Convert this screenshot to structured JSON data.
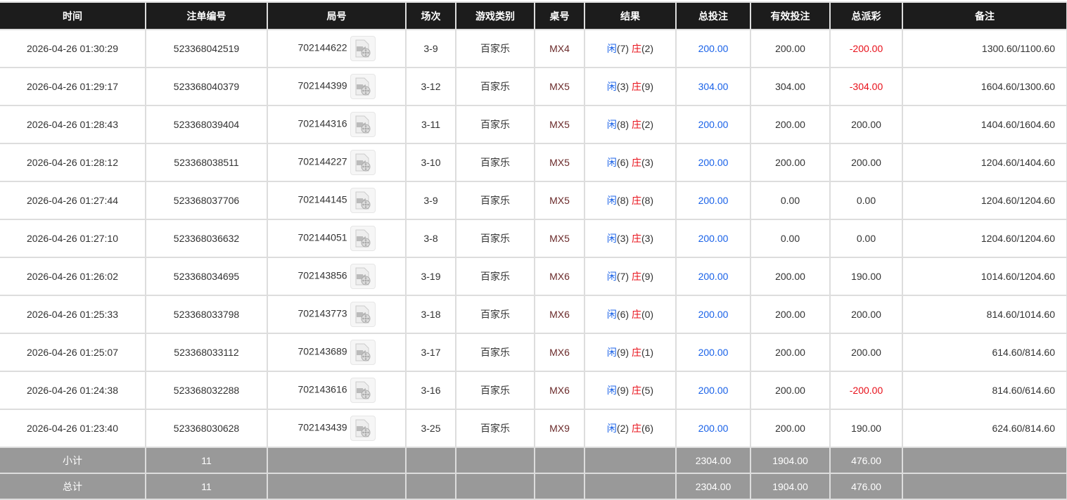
{
  "headers": [
    "时间",
    "注单编号",
    "局号",
    "场次",
    "游戏类别",
    "桌号",
    "结果",
    "总投注",
    "有效投注",
    "总派彩",
    "备注"
  ],
  "rows": [
    {
      "time": "2026-04-26 01:30:29",
      "bet_id": "523368042519",
      "round": "702144622",
      "session": "3-9",
      "game": "百家乐",
      "table": "MX4",
      "player": "闲",
      "player_pts": "(7)",
      "banker": "庄",
      "banker_pts": "(2)",
      "total_bet": "200.00",
      "valid_bet": "200.00",
      "payout": "-200.00",
      "remark": "1300.60/1100.60"
    },
    {
      "time": "2026-04-26 01:29:17",
      "bet_id": "523368040379",
      "round": "702144399",
      "session": "3-12",
      "game": "百家乐",
      "table": "MX5",
      "player": "闲",
      "player_pts": "(3)",
      "banker": "庄",
      "banker_pts": "(9)",
      "total_bet": "304.00",
      "valid_bet": "304.00",
      "payout": "-304.00",
      "remark": "1604.60/1300.60"
    },
    {
      "time": "2026-04-26 01:28:43",
      "bet_id": "523368039404",
      "round": "702144316",
      "session": "3-11",
      "game": "百家乐",
      "table": "MX5",
      "player": "闲",
      "player_pts": "(8)",
      "banker": "庄",
      "banker_pts": "(2)",
      "total_bet": "200.00",
      "valid_bet": "200.00",
      "payout": "200.00",
      "remark": "1404.60/1604.60"
    },
    {
      "time": "2026-04-26 01:28:12",
      "bet_id": "523368038511",
      "round": "702144227",
      "session": "3-10",
      "game": "百家乐",
      "table": "MX5",
      "player": "闲",
      "player_pts": "(6)",
      "banker": "庄",
      "banker_pts": "(3)",
      "total_bet": "200.00",
      "valid_bet": "200.00",
      "payout": "200.00",
      "remark": "1204.60/1404.60"
    },
    {
      "time": "2026-04-26 01:27:44",
      "bet_id": "523368037706",
      "round": "702144145",
      "session": "3-9",
      "game": "百家乐",
      "table": "MX5",
      "player": "闲",
      "player_pts": "(8)",
      "banker": "庄",
      "banker_pts": "(8)",
      "total_bet": "200.00",
      "valid_bet": "0.00",
      "payout": "0.00",
      "remark": "1204.60/1204.60"
    },
    {
      "time": "2026-04-26 01:27:10",
      "bet_id": "523368036632",
      "round": "702144051",
      "session": "3-8",
      "game": "百家乐",
      "table": "MX5",
      "player": "闲",
      "player_pts": "(3)",
      "banker": "庄",
      "banker_pts": "(3)",
      "total_bet": "200.00",
      "valid_bet": "0.00",
      "payout": "0.00",
      "remark": "1204.60/1204.60"
    },
    {
      "time": "2026-04-26 01:26:02",
      "bet_id": "523368034695",
      "round": "702143856",
      "session": "3-19",
      "game": "百家乐",
      "table": "MX6",
      "player": "闲",
      "player_pts": "(7)",
      "banker": "庄",
      "banker_pts": "(9)",
      "total_bet": "200.00",
      "valid_bet": "200.00",
      "payout": "190.00",
      "remark": "1014.60/1204.60"
    },
    {
      "time": "2026-04-26 01:25:33",
      "bet_id": "523368033798",
      "round": "702143773",
      "session": "3-18",
      "game": "百家乐",
      "table": "MX6",
      "player": "闲",
      "player_pts": "(6)",
      "banker": "庄",
      "banker_pts": "(0)",
      "total_bet": "200.00",
      "valid_bet": "200.00",
      "payout": "200.00",
      "remark": "814.60/1014.60"
    },
    {
      "time": "2026-04-26 01:25:07",
      "bet_id": "523368033112",
      "round": "702143689",
      "session": "3-17",
      "game": "百家乐",
      "table": "MX6",
      "player": "闲",
      "player_pts": "(9)",
      "banker": "庄",
      "banker_pts": "(1)",
      "total_bet": "200.00",
      "valid_bet": "200.00",
      "payout": "200.00",
      "remark": "614.60/814.60"
    },
    {
      "time": "2026-04-26 01:24:38",
      "bet_id": "523368032288",
      "round": "702143616",
      "session": "3-16",
      "game": "百家乐",
      "table": "MX6",
      "player": "闲",
      "player_pts": "(9)",
      "banker": "庄",
      "banker_pts": "(5)",
      "total_bet": "200.00",
      "valid_bet": "200.00",
      "payout": "-200.00",
      "remark": "814.60/614.60"
    },
    {
      "time": "2026-04-26 01:23:40",
      "bet_id": "523368030628",
      "round": "702143439",
      "session": "3-25",
      "game": "百家乐",
      "table": "MX9",
      "player": "闲",
      "player_pts": "(2)",
      "banker": "庄",
      "banker_pts": "(6)",
      "total_bet": "200.00",
      "valid_bet": "200.00",
      "payout": "190.00",
      "remark": "624.60/814.60"
    }
  ],
  "subtotal": {
    "label": "小计",
    "count": "11",
    "total_bet": "2304.00",
    "valid_bet": "1904.00",
    "payout": "476.00"
  },
  "total": {
    "label": "总计",
    "count": "11",
    "total_bet": "2304.00",
    "valid_bet": "1904.00",
    "payout": "476.00"
  },
  "colors": {
    "header_bg": "#1c1c1c",
    "player": "#1a62e8",
    "banker": "#e8101a",
    "negative": "#e8101a",
    "summary_bg": "#999999"
  }
}
